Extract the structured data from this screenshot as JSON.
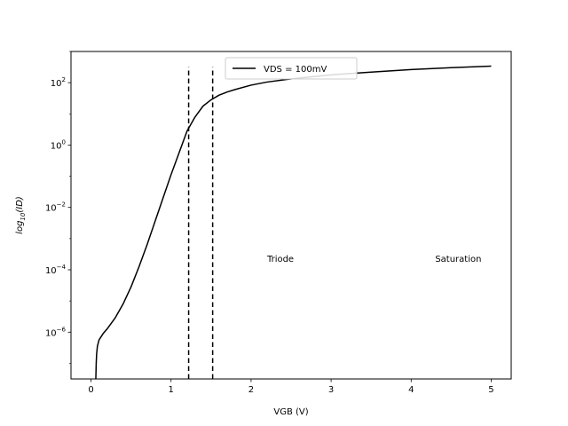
{
  "chart_data": {
    "type": "line",
    "title": "",
    "xlabel": "VGB (V)",
    "ylabel_parts": {
      "prefix": "log",
      "sub": "10",
      "suffix": "(ID)"
    },
    "xlim": [
      -0.25,
      5.25
    ],
    "ylim_log10": [
      -7.5,
      3
    ],
    "yscale": "log",
    "x_ticks": [
      0,
      1,
      2,
      3,
      4,
      5
    ],
    "x_tick_labels": [
      "0",
      "1",
      "2",
      "3",
      "4",
      "5"
    ],
    "y_ticks_log10": [
      2,
      0,
      -2,
      -4,
      -6
    ],
    "y_tick_labels": [
      {
        "base": "10",
        "exp": "2"
      },
      {
        "base": "10",
        "exp": "0"
      },
      {
        "base": "10",
        "exp": "−2"
      },
      {
        "base": "10",
        "exp": "−4"
      },
      {
        "base": "10",
        "exp": "−6"
      }
    ],
    "grid": false,
    "legend_position": "top-center",
    "series": [
      {
        "name": "VDS = 100mV",
        "color": "#000000",
        "style": "solid",
        "x": [
          0.06,
          0.065,
          0.07,
          0.08,
          0.1,
          0.15,
          0.2,
          0.3,
          0.4,
          0.5,
          0.6,
          0.7,
          0.8,
          0.9,
          1.0,
          1.1,
          1.2,
          1.3,
          1.4,
          1.5,
          1.6,
          1.7,
          1.8,
          2.0,
          2.2,
          2.5,
          3.0,
          3.5,
          4.0,
          4.5,
          5.0
        ],
        "log10_y": [
          -7.5,
          -7.0,
          -6.7,
          -6.45,
          -6.25,
          -6.05,
          -5.9,
          -5.55,
          -5.1,
          -4.55,
          -3.9,
          -3.2,
          -2.45,
          -1.7,
          -0.95,
          -0.25,
          0.45,
          0.9,
          1.25,
          1.45,
          1.6,
          1.7,
          1.78,
          1.92,
          2.02,
          2.12,
          2.25,
          2.34,
          2.42,
          2.48,
          2.53
        ]
      }
    ],
    "vlines": [
      {
        "x": 1.22,
        "log10_y_range": [
          -7.5,
          2.5
        ],
        "style": "dashed",
        "color": "#000000"
      },
      {
        "x": 1.52,
        "log10_y_range": [
          -7.5,
          2.5
        ],
        "style": "dashed",
        "color": "#000000"
      }
    ],
    "annotations": [
      {
        "text": "Triode",
        "x": 2.2,
        "log10_y": -3.75
      },
      {
        "text": "Saturation",
        "x": 4.3,
        "log10_y": -3.75
      }
    ]
  }
}
